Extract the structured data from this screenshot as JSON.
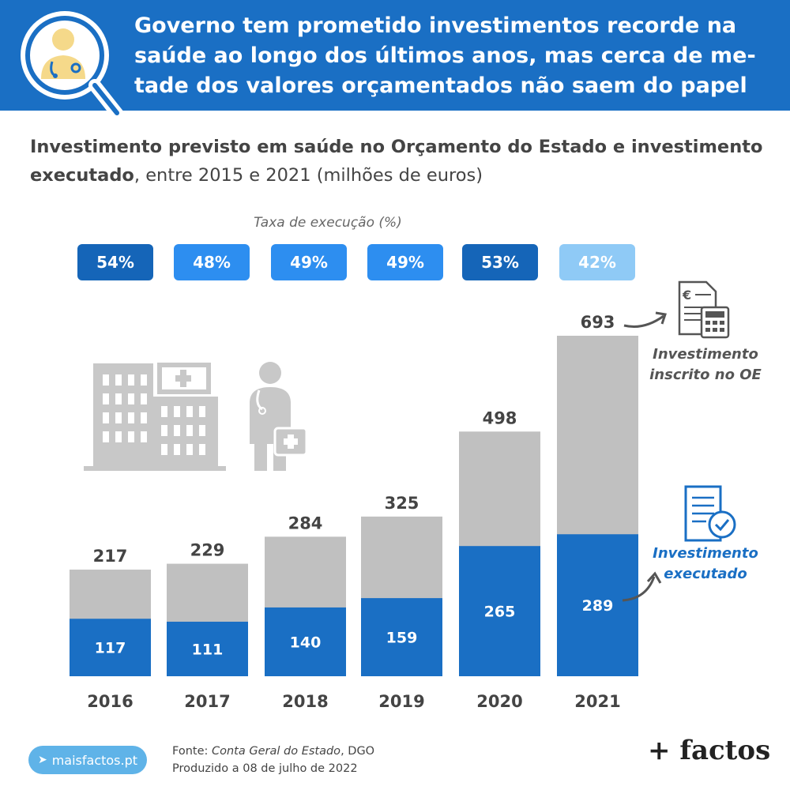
{
  "header": {
    "title": "Governo tem prometido investimentos recorde na saúde ao longo dos últimos anos, mas cerca de me-tade dos valores orçamentados não saem do papel"
  },
  "subtitle": {
    "bold": "Investimento previsto em saúde no Orçamento do Estado e investimento executado",
    "rest": ", entre 2015 e 2021 (milhões de euros)"
  },
  "rates": {
    "label": "Taxa de execução (%)",
    "items": [
      {
        "text": "54%",
        "color": "#1565b8"
      },
      {
        "text": "48%",
        "color": "#2d8ef0"
      },
      {
        "text": "49%",
        "color": "#2d8ef0"
      },
      {
        "text": "49%",
        "color": "#2d8ef0"
      },
      {
        "text": "53%",
        "color": "#1565b8"
      },
      {
        "text": "42%",
        "color": "#8fcaf6"
      }
    ]
  },
  "legend": {
    "budget": "Investimento inscrito no OE",
    "executed": "Investimento executado"
  },
  "colors": {
    "budget": "#c0c0c0",
    "executed": "#1a6fc4",
    "header": "#1a6fc4",
    "icon": "#c8c8c8"
  },
  "chart_data": {
    "type": "bar",
    "categories": [
      "2016",
      "2017",
      "2018",
      "2019",
      "2020",
      "2021"
    ],
    "series": [
      {
        "name": "Investimento inscrito no OE",
        "values": [
          217,
          229,
          284,
          325,
          498,
          693
        ]
      },
      {
        "name": "Investimento executado",
        "values": [
          117,
          111,
          140,
          159,
          265,
          289
        ]
      }
    ],
    "title": "Investimento previsto em saúde no Orçamento do Estado e investimento executado, entre 2015 e 2021 (milhões de euros)",
    "ylim": [
      0,
      693
    ],
    "grid": false,
    "legend": "right"
  },
  "footer": {
    "site": "maisfactos.pt",
    "source_prefix": "Fonte: ",
    "source_italic": "Conta Geral do Estado",
    "source_suffix": ", DGO",
    "produced": "Produzido a 08 de julho de 2022",
    "brand": "+ factos"
  }
}
